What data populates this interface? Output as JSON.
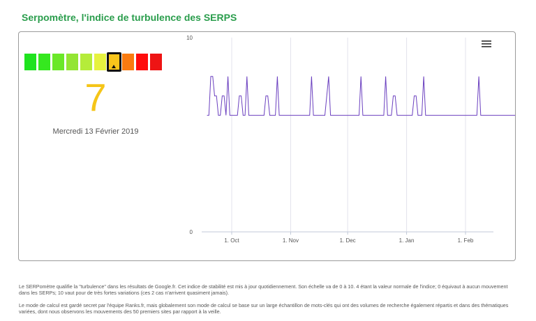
{
  "page": {
    "title": "Serpomètre, l'indice de turbulence des SERPS"
  },
  "gauge": {
    "colors": [
      "#1fe31f",
      "#35e81f",
      "#6ae828",
      "#93e533",
      "#b5ec3a",
      "#e6f23f",
      "#f9c51b",
      "#fa7b10",
      "#ff0d0d",
      "#ee1414"
    ],
    "active_index": 6,
    "score": "7",
    "date": "Mercredi 13 Février 2019"
  },
  "chart_data": {
    "type": "line",
    "title": "",
    "xlabel": "",
    "ylabel": "",
    "ylim": [
      0,
      10
    ],
    "y_ticks": [
      "0",
      "10"
    ],
    "x_ticks": [
      "1. Oct",
      "1. Nov",
      "1. Dec",
      "1. Jan",
      "1. Feb"
    ],
    "x_start": "2018-09-18",
    "line_color": "#6a3fbf",
    "grid": "vertical",
    "series": [
      {
        "values": [
          6,
          6,
          8,
          8,
          7,
          7,
          6,
          6,
          7,
          7,
          6,
          8,
          6,
          6,
          6,
          6,
          6,
          7,
          7,
          6,
          6,
          8,
          6,
          6,
          6,
          6,
          6,
          6,
          6,
          6,
          6,
          7,
          7,
          6,
          6,
          6,
          6,
          8,
          6,
          6,
          6,
          6,
          6,
          6,
          6,
          6,
          6,
          6,
          6,
          6,
          6,
          6,
          6,
          6,
          6,
          8,
          6,
          6,
          6,
          6,
          6,
          6,
          6,
          7,
          8,
          6,
          6,
          6,
          6,
          6,
          6,
          6,
          6,
          6,
          6,
          6,
          6,
          6,
          6,
          6,
          6,
          8,
          6,
          6,
          6,
          6,
          6,
          6,
          6,
          6,
          6,
          6,
          6,
          6,
          8,
          6,
          6,
          6,
          7,
          7,
          6,
          6,
          6,
          6,
          6,
          6,
          6,
          6,
          6,
          7,
          7,
          6,
          6,
          6,
          8,
          6,
          6,
          6,
          6,
          6,
          6,
          6,
          6,
          6,
          6,
          6,
          6,
          6,
          6,
          6,
          6,
          6,
          6,
          6,
          6,
          6,
          6,
          6,
          6,
          6,
          6,
          6,
          6,
          8,
          6,
          6,
          6,
          6,
          6,
          6,
          6,
          6,
          6,
          6,
          6,
          6,
          6,
          6,
          6,
          6,
          6,
          6,
          6,
          6,
          6,
          6,
          6,
          6,
          6,
          6,
          6,
          6,
          6,
          6,
          6,
          6,
          6,
          6,
          6,
          6,
          6,
          6,
          6,
          6,
          6,
          6,
          6,
          6,
          6,
          6,
          6,
          6,
          6,
          6,
          6,
          6,
          6,
          6,
          6,
          6,
          6,
          6,
          6,
          6,
          6,
          6,
          6,
          6,
          6,
          6,
          6,
          6,
          6,
          6,
          6,
          6,
          6,
          6,
          6,
          6,
          6,
          6,
          6,
          6,
          6,
          6,
          6,
          6,
          6,
          6,
          6,
          6,
          6,
          6,
          6,
          6,
          6,
          6,
          6,
          6,
          6,
          6,
          6,
          6,
          6,
          6,
          6,
          6,
          6,
          6,
          6,
          6,
          6,
          6,
          6,
          6,
          6,
          6,
          6,
          6,
          6,
          6,
          6,
          6,
          6,
          6,
          6,
          6,
          6,
          6,
          6,
          6,
          6,
          6,
          6,
          6,
          6,
          6,
          6,
          6,
          6,
          6,
          6,
          6,
          6,
          6,
          6,
          6,
          6,
          6,
          6,
          6,
          6,
          6,
          6,
          6,
          6,
          6,
          6,
          6,
          6,
          6,
          6,
          6,
          6,
          6,
          6,
          6,
          6,
          6,
          6,
          6,
          6,
          6,
          6,
          6,
          6,
          6,
          6,
          6,
          6,
          6,
          6,
          6,
          6,
          6,
          6,
          6,
          6,
          6,
          6,
          6,
          6,
          6,
          6,
          6,
          6,
          6,
          6,
          6,
          6,
          6,
          6,
          6,
          6,
          6,
          6
        ]
      }
    ]
  },
  "footer": {
    "paragraph1": "Le SERPomètre qualifie la \"turbulence\" dans les résultats de Google.fr. Cet indice de stabilité est mis à jour quotidiennement. Son échelle va de 0 à 10. 4 étant la valeur normale de l'indice; 0 équivaut à aucun mouvement dans les SERPs; 10 vaut pour de très fortes variations (ces 2 cas n'arrivent quasiment jamais).",
    "paragraph2": "Le mode de calcul est gardé secret par l'équipe Ranks.fr, mais globalement son mode de calcul se base sur un large échantillon de mots-clés qui ont des volumes de recherche également répartis et dans des thématiques variées, dont nous observons les mouvements des 50 premiers sites par rapport à la veille."
  },
  "icons": {
    "chart_menu": "hamburger-menu-icon"
  }
}
